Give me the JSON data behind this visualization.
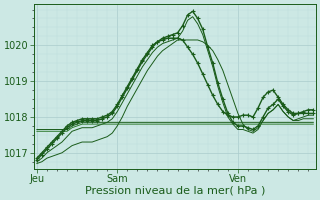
{
  "background_color": "#cce8e4",
  "grid_color_major": "#aacccc",
  "grid_color_minor": "#bbdddd",
  "line_color_dark": "#1a5c1a",
  "line_color_mid": "#2d7a2d",
  "xlabel": "Pression niveau de la mer( hPa )",
  "xtick_labels": [
    "Jeu",
    "Sam",
    "Ven"
  ],
  "xtick_positions": [
    0,
    16,
    40
  ],
  "ylim": [
    1016.55,
    1021.15
  ],
  "yticks": [
    1017,
    1018,
    1019,
    1020
  ],
  "total_points": 56,
  "series": [
    {
      "y": [
        1016.85,
        1017.0,
        1017.15,
        1017.3,
        1017.45,
        1017.6,
        1017.75,
        1017.85,
        1017.9,
        1017.95,
        1017.95,
        1017.95,
        1017.95,
        1018.0,
        1018.05,
        1018.15,
        1018.35,
        1018.6,
        1018.85,
        1019.1,
        1019.35,
        1019.6,
        1019.8,
        1020.0,
        1020.1,
        1020.15,
        1020.2,
        1020.2,
        1020.2,
        1020.15,
        1019.95,
        1019.75,
        1019.5,
        1019.2,
        1018.9,
        1018.6,
        1018.35,
        1018.15,
        1018.05,
        1018.0,
        1018.0,
        1018.05,
        1018.05,
        1018.0,
        1018.25,
        1018.55,
        1018.7,
        1018.75,
        1018.55,
        1018.35,
        1018.2,
        1018.1,
        1018.1,
        1018.1,
        1018.1,
        1018.1
      ],
      "marker": true,
      "color": "#1a5c1a",
      "lw": 1.0
    },
    {
      "y": [
        1016.8,
        1016.95,
        1017.1,
        1017.25,
        1017.4,
        1017.55,
        1017.7,
        1017.8,
        1017.85,
        1017.9,
        1017.9,
        1017.9,
        1017.9,
        1017.95,
        1018.0,
        1018.1,
        1018.3,
        1018.55,
        1018.8,
        1019.05,
        1019.3,
        1019.55,
        1019.75,
        1019.95,
        1020.1,
        1020.2,
        1020.25,
        1020.3,
        1020.35,
        1020.55,
        1020.85,
        1020.95,
        1020.75,
        1020.45,
        1019.95,
        1019.5,
        1018.95,
        1018.5,
        1018.1,
        1017.85,
        1017.75,
        1017.75,
        1017.7,
        1017.65,
        1017.75,
        1018.0,
        1018.25,
        1018.35,
        1018.5,
        1018.3,
        1018.15,
        1018.05,
        1018.1,
        1018.15,
        1018.2,
        1018.2
      ],
      "marker": true,
      "color": "#1a5c1a",
      "lw": 1.0
    },
    {
      "y": [
        1016.75,
        1016.85,
        1017.0,
        1017.1,
        1017.2,
        1017.3,
        1017.45,
        1017.6,
        1017.65,
        1017.7,
        1017.7,
        1017.7,
        1017.75,
        1017.8,
        1017.85,
        1017.95,
        1018.15,
        1018.4,
        1018.65,
        1018.9,
        1019.15,
        1019.4,
        1019.6,
        1019.8,
        1019.95,
        1020.05,
        1020.1,
        1020.15,
        1020.2,
        1020.4,
        1020.7,
        1020.8,
        1020.6,
        1020.3,
        1019.85,
        1019.4,
        1018.85,
        1018.4,
        1018.0,
        1017.8,
        1017.65,
        1017.65,
        1017.6,
        1017.55,
        1017.65,
        1017.9,
        1018.1,
        1018.2,
        1018.35,
        1018.15,
        1018.0,
        1017.9,
        1017.95,
        1018.0,
        1018.05,
        1018.05
      ],
      "marker": false,
      "color": "#1a5c1a",
      "lw": 0.7
    },
    {
      "y": [
        1016.7,
        1016.75,
        1016.85,
        1016.9,
        1016.95,
        1017.0,
        1017.1,
        1017.2,
        1017.25,
        1017.3,
        1017.3,
        1017.3,
        1017.35,
        1017.4,
        1017.45,
        1017.55,
        1017.75,
        1018.0,
        1018.3,
        1018.55,
        1018.8,
        1019.05,
        1019.3,
        1019.5,
        1019.7,
        1019.85,
        1019.95,
        1020.05,
        1020.15,
        1020.15,
        1020.15,
        1020.15,
        1020.15,
        1020.1,
        1020.0,
        1019.85,
        1019.6,
        1019.3,
        1018.9,
        1018.5,
        1018.1,
        1017.8,
        1017.65,
        1017.6,
        1017.7,
        1017.9,
        1018.1,
        1018.2,
        1018.35,
        1018.15,
        1018.0,
        1017.9,
        1017.9,
        1017.95,
        1017.95,
        1017.95
      ],
      "marker": false,
      "color": "#1a5c1a",
      "lw": 0.7
    },
    {
      "y": [
        1017.65,
        1017.65,
        1017.65,
        1017.65,
        1017.65,
        1017.65,
        1017.65,
        1017.75,
        1017.8,
        1017.85,
        1017.85,
        1017.85,
        1017.85,
        1017.85,
        1017.85,
        1017.85,
        1017.85,
        1017.85,
        1017.85,
        1017.85,
        1017.85,
        1017.85,
        1017.85,
        1017.85,
        1017.85,
        1017.85,
        1017.85,
        1017.85,
        1017.85,
        1017.85,
        1017.85,
        1017.85,
        1017.85,
        1017.85,
        1017.85,
        1017.85,
        1017.85,
        1017.85,
        1017.85,
        1017.85,
        1017.85,
        1017.85,
        1017.85,
        1017.85,
        1017.85,
        1017.85,
        1017.85,
        1017.85,
        1017.85,
        1017.85,
        1017.85,
        1017.85,
        1017.85,
        1017.85,
        1017.85,
        1017.85
      ],
      "marker": false,
      "color": "#1a5c1a",
      "lw": 0.7
    },
    {
      "y": [
        1017.6,
        1017.6,
        1017.6,
        1017.6,
        1017.6,
        1017.6,
        1017.6,
        1017.7,
        1017.75,
        1017.8,
        1017.8,
        1017.8,
        1017.8,
        1017.8,
        1017.8,
        1017.8,
        1017.8,
        1017.8,
        1017.8,
        1017.8,
        1017.8,
        1017.8,
        1017.8,
        1017.8,
        1017.8,
        1017.8,
        1017.8,
        1017.8,
        1017.8,
        1017.8,
        1017.8,
        1017.8,
        1017.8,
        1017.8,
        1017.8,
        1017.8,
        1017.8,
        1017.8,
        1017.8,
        1017.8,
        1017.8,
        1017.8,
        1017.8,
        1017.8,
        1017.8,
        1017.8,
        1017.8,
        1017.8,
        1017.8,
        1017.8,
        1017.8,
        1017.8,
        1017.8,
        1017.8,
        1017.8,
        1017.8
      ],
      "marker": false,
      "color": "#2d7a2d",
      "lw": 0.7
    }
  ]
}
